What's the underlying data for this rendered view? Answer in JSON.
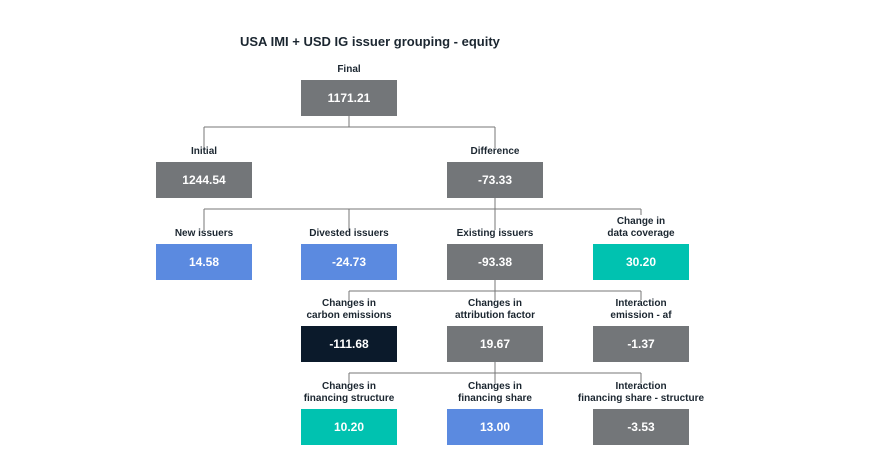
{
  "title": "USA IMI + USD IG issuer grouping - equity",
  "colors": {
    "gray": "#737679",
    "blue": "#5b8ae0",
    "teal": "#00c2b0",
    "navy": "#0b1a2b",
    "connector": "#777777"
  },
  "nodes": {
    "final": {
      "label": "Final",
      "value": "1171.21",
      "color": "gray"
    },
    "initial": {
      "label": "Initial",
      "value": "1244.54",
      "color": "gray"
    },
    "difference": {
      "label": "Difference",
      "value": "-73.33",
      "color": "gray"
    },
    "new_issuers": {
      "label": "New issuers",
      "value": "14.58",
      "color": "blue"
    },
    "divested_issuers": {
      "label": "Divested issuers",
      "value": "-24.73",
      "color": "blue"
    },
    "existing_issuers": {
      "label": "Existing issuers",
      "value": "-93.38",
      "color": "gray"
    },
    "data_coverage": {
      "label": "Change in\ndata coverage",
      "value": "30.20",
      "color": "teal"
    },
    "carbon_emissions": {
      "label": "Changes in\ncarbon emissions",
      "value": "-111.68",
      "color": "navy"
    },
    "attribution_factor": {
      "label": "Changes in\nattribution factor",
      "value": "19.67",
      "color": "gray"
    },
    "interaction_emission_af": {
      "label": "Interaction\nemission - af",
      "value": "-1.37",
      "color": "gray"
    },
    "financing_structure": {
      "label": "Changes in\nfinancing structure",
      "value": "10.20",
      "color": "teal"
    },
    "financing_share": {
      "label": "Changes in\nfinancing share",
      "value": "13.00",
      "color": "blue"
    },
    "interaction_share_structure": {
      "label": "Interaction\nfinancing share - structure",
      "value": "-3.53",
      "color": "gray"
    }
  }
}
